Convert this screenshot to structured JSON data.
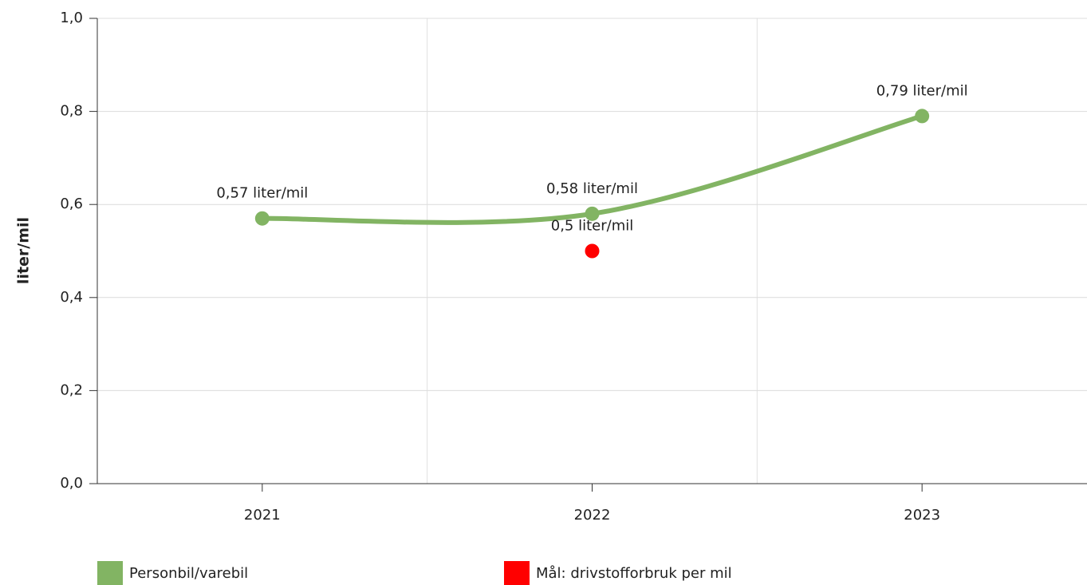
{
  "chart_data": {
    "type": "line",
    "y_label": "liter/mil",
    "categories": [
      "2021",
      "2022",
      "2023"
    ],
    "series": [
      {
        "name": "Personbil/varebil",
        "color": "#82b463",
        "smooth": true,
        "values": [
          0.57,
          0.58,
          0.79
        ],
        "value_labels": [
          "0,57 liter/mil",
          "0,58 liter/mil",
          "0,79 liter/mil"
        ]
      },
      {
        "name": "Mål: drivstofforbruk per mil",
        "color": "#ff0000",
        "values": [
          null,
          0.5,
          null
        ],
        "value_labels": [
          null,
          "0,5 liter/mil",
          null
        ]
      }
    ],
    "ylim": [
      0,
      1
    ],
    "yticks": [
      {
        "value": 0,
        "label": "0,0"
      },
      {
        "value": 0.2,
        "label": "0,2"
      },
      {
        "value": 0.4,
        "label": "0,4"
      },
      {
        "value": 0.6,
        "label": "0,6"
      },
      {
        "value": 0.8,
        "label": "0,8"
      },
      {
        "value": 1,
        "label": "1,0"
      }
    ],
    "grid": true
  }
}
